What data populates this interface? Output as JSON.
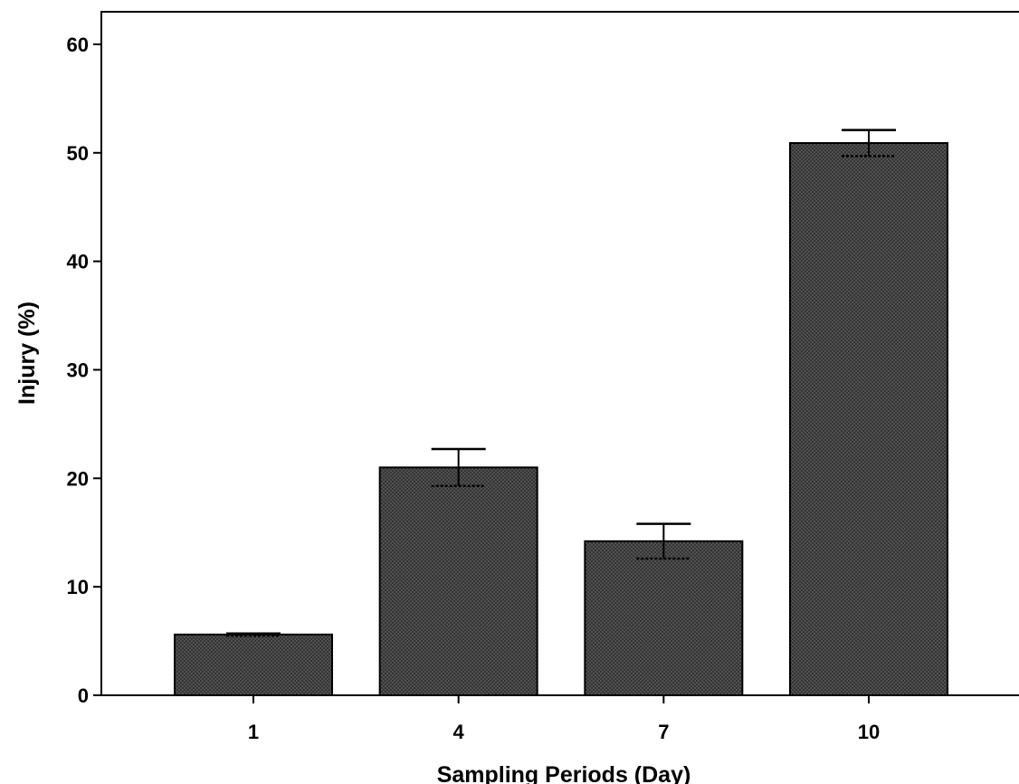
{
  "chart_data": {
    "type": "bar",
    "title": "",
    "xlabel": "Sampling Periods (Day)",
    "ylabel": "Injury (%)",
    "categories": [
      "1",
      "4",
      "7",
      "10"
    ],
    "values": [
      5.6,
      21.0,
      14.2,
      50.9
    ],
    "error_upper": [
      5.7,
      22.7,
      15.8,
      52.1
    ],
    "error_lower": [
      5.5,
      19.3,
      12.6,
      49.7
    ],
    "ylim": [
      0,
      63
    ],
    "yticks": [
      0,
      10,
      20,
      30,
      40,
      50,
      60
    ],
    "ytick_labels": [
      "0",
      "10",
      "20",
      "30",
      "40",
      "50",
      "60"
    ],
    "grid": false,
    "legend": "none",
    "bar_color": "#1a1a1a",
    "bar_pattern": "crosshatch"
  }
}
